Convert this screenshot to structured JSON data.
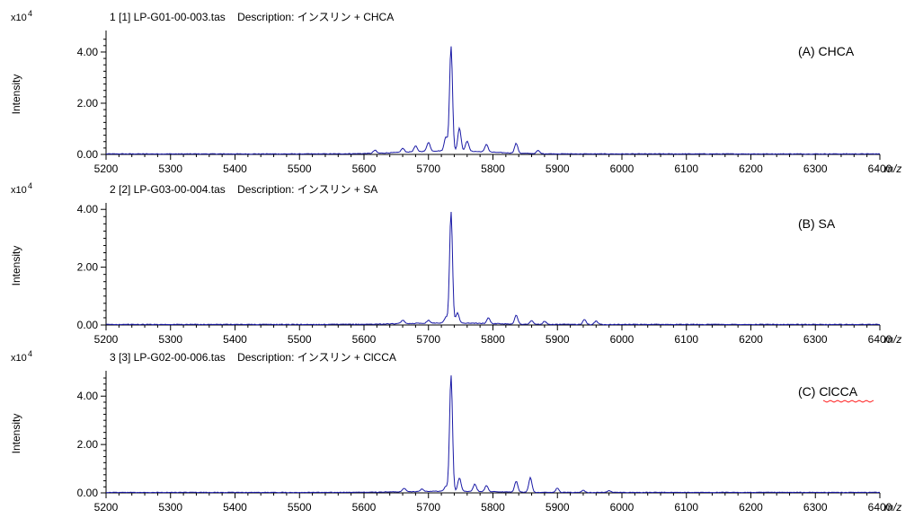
{
  "colors": {
    "trace": "#1a1aa6",
    "axis": "#000000",
    "squiggle": "#ff0000"
  },
  "chart_data": [
    {
      "type": "line",
      "header": "1 [1] LP-G01-00-003.tas    Description: インスリン + CHCA",
      "annotation": "(A) CHCA",
      "ylabel": "Intensity",
      "scale_prefix": "x10",
      "scale_exp": "4",
      "x_unit": "m/z",
      "xlim": [
        5200,
        6400
      ],
      "ylim": [
        0,
        4.7
      ],
      "xticks": [
        "5200",
        "5300",
        "5400",
        "5500",
        "5600",
        "5700",
        "5800",
        "5900",
        "6000",
        "6100",
        "6200",
        "6300",
        "6400"
      ],
      "yticks": [
        "0.00",
        "2.00",
        "4.00"
      ],
      "peaks": [
        {
          "x": 5735,
          "y": 4.1
        },
        {
          "x": 5727,
          "y": 0.55
        },
        {
          "x": 5748,
          "y": 0.9
        },
        {
          "x": 5760,
          "y": 0.4
        },
        {
          "x": 5700,
          "y": 0.35
        },
        {
          "x": 5680,
          "y": 0.22
        },
        {
          "x": 5790,
          "y": 0.3
        },
        {
          "x": 5836,
          "y": 0.38
        },
        {
          "x": 5617,
          "y": 0.12
        },
        {
          "x": 5660,
          "y": 0.15
        },
        {
          "x": 5870,
          "y": 0.12
        }
      ]
    },
    {
      "type": "line",
      "header": "2 [2] LP-G03-00-004.tas    Description: インスリン + SA",
      "annotation": "(B) SA",
      "ylabel": "Intensity",
      "scale_prefix": "x10",
      "scale_exp": "4",
      "x_unit": "m/z",
      "xlim": [
        5200,
        6400
      ],
      "ylim": [
        0,
        4.1
      ],
      "xticks": [
        "5200",
        "5300",
        "5400",
        "5500",
        "5600",
        "5700",
        "5800",
        "5900",
        "6000",
        "6100",
        "6200",
        "6300",
        "6400"
      ],
      "yticks": [
        "0.00",
        "2.00",
        "4.00"
      ],
      "peaks": [
        {
          "x": 5735,
          "y": 3.85
        },
        {
          "x": 5745,
          "y": 0.35
        },
        {
          "x": 5727,
          "y": 0.2
        },
        {
          "x": 5793,
          "y": 0.2
        },
        {
          "x": 5836,
          "y": 0.3
        },
        {
          "x": 5860,
          "y": 0.12
        },
        {
          "x": 5880,
          "y": 0.1
        },
        {
          "x": 5942,
          "y": 0.18
        },
        {
          "x": 5960,
          "y": 0.12
        },
        {
          "x": 5660,
          "y": 0.12
        },
        {
          "x": 5700,
          "y": 0.1
        }
      ]
    },
    {
      "type": "line",
      "header": "3 [3] LP-G02-00-006.tas    Description: インスリン + ClCCA",
      "annotation": "(C) ClCCA",
      "ylabel": "Intensity",
      "scale_prefix": "x10",
      "scale_exp": "4",
      "x_unit": "m/z",
      "xlim": [
        5200,
        6400
      ],
      "ylim": [
        0,
        4.9
      ],
      "xticks": [
        "5200",
        "5300",
        "5400",
        "5500",
        "5600",
        "5700",
        "5800",
        "5900",
        "6000",
        "6100",
        "6200",
        "6300",
        "6400"
      ],
      "yticks": [
        "0.00",
        "2.00",
        "4.00"
      ],
      "peaks": [
        {
          "x": 5735,
          "y": 4.8
        },
        {
          "x": 5748,
          "y": 0.55
        },
        {
          "x": 5727,
          "y": 0.2
        },
        {
          "x": 5772,
          "y": 0.3
        },
        {
          "x": 5790,
          "y": 0.25
        },
        {
          "x": 5836,
          "y": 0.45
        },
        {
          "x": 5858,
          "y": 0.6
        },
        {
          "x": 5900,
          "y": 0.18
        },
        {
          "x": 5662,
          "y": 0.15
        },
        {
          "x": 5690,
          "y": 0.1
        },
        {
          "x": 5940,
          "y": 0.1
        },
        {
          "x": 5980,
          "y": 0.08
        }
      ]
    }
  ]
}
